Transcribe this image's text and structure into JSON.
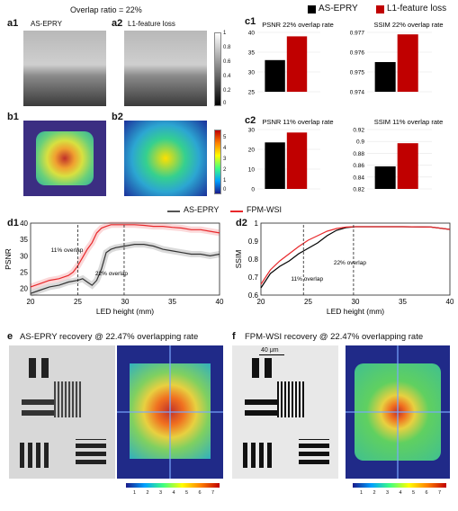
{
  "overlap_title": "Overlap ratio = 22%",
  "panels": {
    "a1": {
      "letter": "a1",
      "title": "AS-EPRY"
    },
    "a2": {
      "letter": "a2",
      "title": "L1-feature loss"
    },
    "b1": {
      "letter": "b1"
    },
    "b2": {
      "letter": "b2"
    },
    "c1": {
      "letter": "c1"
    },
    "c2": {
      "letter": "c2"
    },
    "d1": {
      "letter": "d1"
    },
    "d2": {
      "letter": "d2"
    },
    "e": {
      "letter": "e",
      "title": "AS-EPRY recovery @ 22.47% overlapping rate"
    },
    "f": {
      "letter": "f",
      "title": "FPM-WSI recovery @ 22.47% overlapping rate",
      "scale_bar": "40 μm"
    }
  },
  "colorbar_gray": {
    "ticks": [
      "1",
      "0.8",
      "0.6",
      "0.4",
      "0.2",
      "0"
    ]
  },
  "colorbar_spec": {
    "ticks": [
      "5",
      "4",
      "3",
      "2",
      "1",
      "0"
    ]
  },
  "colorbar_bottom": {
    "ticks": [
      "1",
      "2",
      "3",
      "4",
      "5",
      "6",
      "7"
    ]
  },
  "legend_c": {
    "items": [
      {
        "name": "AS-EPRY",
        "color": "#000000"
      },
      {
        "name": "L1-feature loss",
        "color": "#c00000"
      }
    ]
  },
  "legend_d": {
    "items": [
      {
        "name": "AS-EPRY",
        "color": "#555555"
      },
      {
        "name": "FPM-WSI",
        "color": "#e8282b"
      }
    ]
  },
  "chart_data": [
    {
      "id": "c1-psnr",
      "type": "bar",
      "title": "PSNR 22% overlap rate",
      "categories": [
        "AS-EPRY",
        "L1-feature loss"
      ],
      "values": [
        33,
        39
      ],
      "ylim": [
        25,
        40
      ],
      "yticks": [
        25,
        30,
        35,
        40
      ],
      "colors": [
        "#000000",
        "#c00000"
      ]
    },
    {
      "id": "c1-ssim",
      "type": "bar",
      "title": "SSIM 22% overlap rate",
      "categories": [
        "AS-EPRY",
        "L1-feature loss"
      ],
      "values": [
        0.9755,
        0.9769
      ],
      "ylim": [
        0.974,
        0.977
      ],
      "yticks": [
        "0.974",
        "0.975",
        "0.976",
        "0.977"
      ],
      "colors": [
        "#000000",
        "#c00000"
      ]
    },
    {
      "id": "c2-psnr",
      "type": "bar",
      "title": "PSNR 11% overlap rate",
      "categories": [
        "AS-EPRY",
        "L1-feature loss"
      ],
      "values": [
        23.5,
        28.5
      ],
      "ylim": [
        0,
        30
      ],
      "yticks": [
        0,
        10,
        20,
        30
      ],
      "colors": [
        "#000000",
        "#c00000"
      ]
    },
    {
      "id": "c2-ssim",
      "type": "bar",
      "title": "SSIM 11% overlap rate",
      "categories": [
        "AS-EPRY",
        "L1-feature loss"
      ],
      "values": [
        0.858,
        0.897
      ],
      "ylim": [
        0.82,
        0.92
      ],
      "yticks": [
        "0.82",
        "0.84",
        "0.86",
        "0.88",
        "0.9",
        "0.92"
      ],
      "colors": [
        "#000000",
        "#c00000"
      ]
    },
    {
      "id": "d1",
      "type": "line",
      "xlabel": "LED height (mm)",
      "ylabel": "PSNR",
      "xlim": [
        20,
        40
      ],
      "ylim": [
        18,
        40
      ],
      "xticks": [
        20,
        25,
        30,
        35,
        40
      ],
      "yticks": [
        20,
        25,
        30,
        35,
        40
      ],
      "annotations": [
        {
          "text": "11% overlap",
          "x": 25
        },
        {
          "text": "22% overlap",
          "x": 29.9
        }
      ],
      "series": [
        {
          "name": "AS-EPRY",
          "color": "#333333",
          "x": [
            20,
            21,
            22,
            23,
            24,
            25,
            25.5,
            26,
            26.5,
            27,
            27.5,
            28,
            28.5,
            29,
            30,
            31,
            32,
            33,
            34,
            35,
            36,
            37,
            38,
            39,
            40
          ],
          "y": [
            18.5,
            19.5,
            20.5,
            21,
            22,
            22.5,
            23,
            22,
            21,
            22.5,
            26,
            31,
            32,
            32.5,
            33,
            33.5,
            33.5,
            33,
            32,
            31.5,
            31,
            30.5,
            30.5,
            30,
            30.5
          ]
        },
        {
          "name": "FPM-WSI",
          "color": "#e8282b",
          "x": [
            20,
            21,
            22,
            23,
            24,
            24.5,
            25,
            25.5,
            26,
            26.5,
            27,
            27.5,
            28,
            28.5,
            29,
            30,
            31,
            32,
            33,
            34,
            35,
            36,
            37,
            38,
            39,
            40
          ],
          "y": [
            20.5,
            21.5,
            22.5,
            23,
            24,
            25,
            27,
            29.5,
            32,
            34,
            37,
            38.5,
            39,
            39.5,
            39.5,
            39.5,
            39.5,
            39.3,
            39,
            39,
            38.7,
            38.5,
            38,
            38,
            37.5,
            37
          ]
        }
      ]
    },
    {
      "id": "d2",
      "type": "line",
      "xlabel": "LED height (mm)",
      "ylabel": "SSIM",
      "xlim": [
        20,
        40
      ],
      "ylim": [
        0.6,
        1.0
      ],
      "xticks": [
        20,
        25,
        30,
        35,
        40
      ],
      "yticks": [
        "0.6",
        "0.7",
        "0.8",
        "0.9",
        "1"
      ],
      "annotations": [
        {
          "text": "11% overlap",
          "x": 24.5
        },
        {
          "text": "22% overlap",
          "x": 29.8
        }
      ],
      "series": [
        {
          "name": "AS-EPRY",
          "color": "#000000",
          "x": [
            20,
            21,
            22,
            23,
            24,
            25,
            26,
            27,
            28,
            29,
            30,
            32,
            35,
            38,
            40
          ],
          "y": [
            0.64,
            0.72,
            0.76,
            0.79,
            0.83,
            0.86,
            0.89,
            0.93,
            0.96,
            0.975,
            0.98,
            0.98,
            0.98,
            0.978,
            0.965
          ]
        },
        {
          "name": "FPM-WSI",
          "color": "#e8282b",
          "x": [
            20,
            21,
            22,
            23,
            24,
            25,
            26,
            27,
            28,
            29,
            30,
            32,
            35,
            38,
            40
          ],
          "y": [
            0.66,
            0.74,
            0.79,
            0.83,
            0.87,
            0.905,
            0.93,
            0.955,
            0.97,
            0.978,
            0.98,
            0.98,
            0.98,
            0.978,
            0.965
          ]
        }
      ]
    }
  ]
}
